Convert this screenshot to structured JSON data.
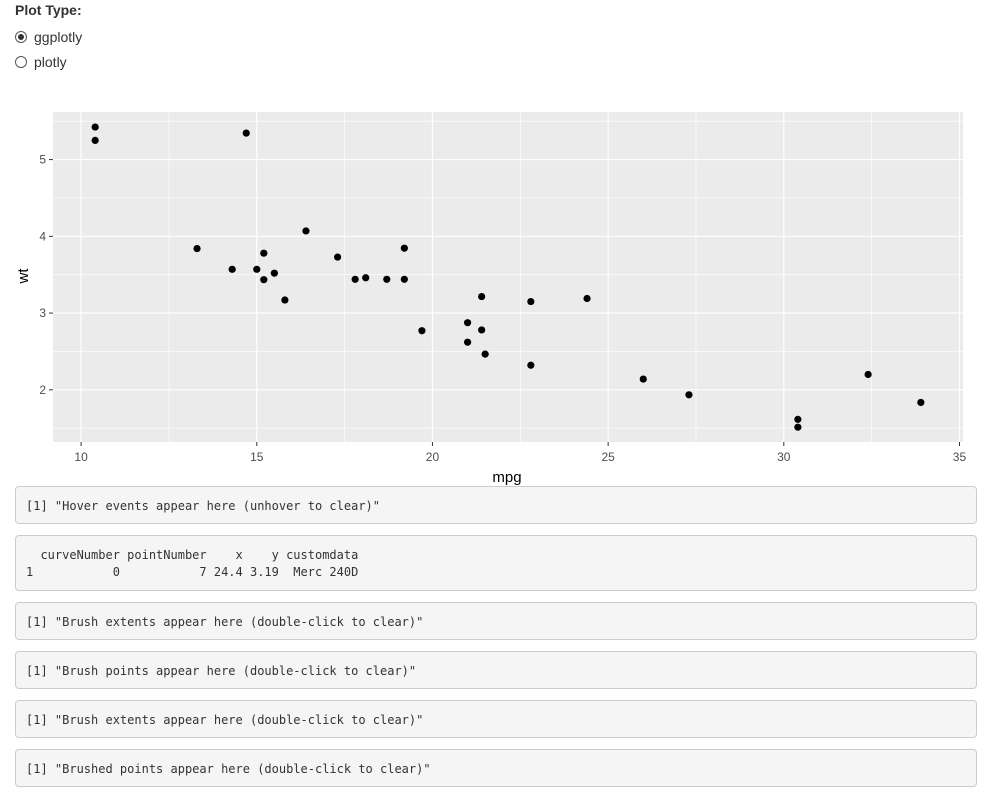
{
  "controls": {
    "label": "Plot Type:",
    "options": [
      {
        "label": "ggplotly",
        "checked": true
      },
      {
        "label": "plotly",
        "checked": false
      }
    ]
  },
  "chart_data": {
    "type": "scatter",
    "xlabel": "mpg",
    "ylabel": "wt",
    "xlim": [
      9.2,
      35.1
    ],
    "ylim": [
      1.32,
      5.62
    ],
    "x_ticks": [
      10,
      15,
      20,
      25,
      30,
      35
    ],
    "y_ticks": [
      2,
      3,
      4,
      5
    ],
    "grid": true,
    "point_color": "#000000",
    "panel_color": "#ebebeb",
    "points": [
      {
        "x": 21.0,
        "y": 2.62
      },
      {
        "x": 21.0,
        "y": 2.875
      },
      {
        "x": 22.8,
        "y": 2.32
      },
      {
        "x": 21.4,
        "y": 3.215
      },
      {
        "x": 18.7,
        "y": 3.44
      },
      {
        "x": 18.1,
        "y": 3.46
      },
      {
        "x": 14.3,
        "y": 3.57
      },
      {
        "x": 24.4,
        "y": 3.19
      },
      {
        "x": 22.8,
        "y": 3.15
      },
      {
        "x": 19.2,
        "y": 3.44
      },
      {
        "x": 17.8,
        "y": 3.44
      },
      {
        "x": 16.4,
        "y": 4.07
      },
      {
        "x": 17.3,
        "y": 3.73
      },
      {
        "x": 15.2,
        "y": 3.78
      },
      {
        "x": 10.4,
        "y": 5.25
      },
      {
        "x": 10.4,
        "y": 5.424
      },
      {
        "x": 14.7,
        "y": 5.345
      },
      {
        "x": 32.4,
        "y": 2.2
      },
      {
        "x": 30.4,
        "y": 1.615
      },
      {
        "x": 33.9,
        "y": 1.835
      },
      {
        "x": 21.5,
        "y": 2.465
      },
      {
        "x": 15.5,
        "y": 3.52
      },
      {
        "x": 15.2,
        "y": 3.435
      },
      {
        "x": 13.3,
        "y": 3.84
      },
      {
        "x": 19.2,
        "y": 3.845
      },
      {
        "x": 27.3,
        "y": 1.935
      },
      {
        "x": 26.0,
        "y": 2.14
      },
      {
        "x": 30.4,
        "y": 1.513
      },
      {
        "x": 15.8,
        "y": 3.17
      },
      {
        "x": 19.7,
        "y": 2.77
      },
      {
        "x": 15.0,
        "y": 3.57
      },
      {
        "x": 21.4,
        "y": 2.78
      }
    ]
  },
  "outputs": {
    "hover": "[1] \"Hover events appear here (unhover to clear)\"",
    "click": "  curveNumber pointNumber    x    y customdata\n1           0           7 24.4 3.19  Merc 240D",
    "brush_extents": "[1] \"Brush extents appear here (double-click to clear)\"",
    "brush_points": "[1] \"Brush points appear here (double-click to clear)\"",
    "brush_extents_2": "[1] \"Brush extents appear here (double-click to clear)\"",
    "brushed_points": "[1] \"Brushed points appear here (double-click to clear)\""
  }
}
